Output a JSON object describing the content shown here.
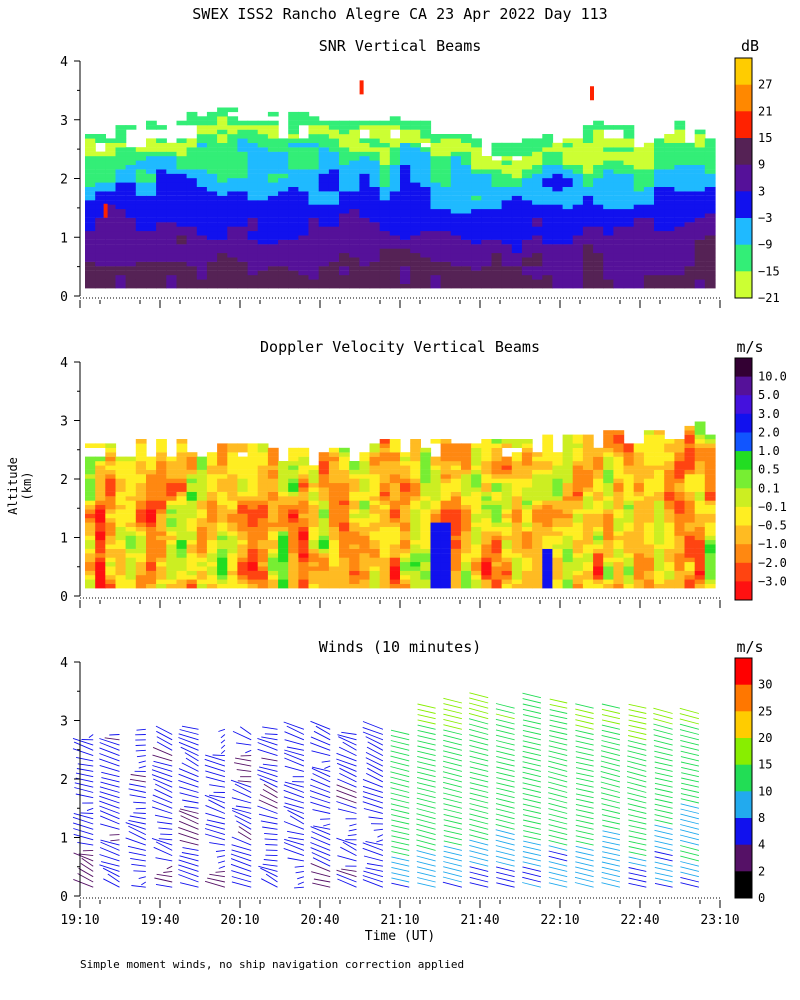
{
  "title": "SWEX ISS2 Rancho Alegre CA  23 Apr 2022 Day 113",
  "y_axis_label": "Altitude (km)",
  "x_axis_label": "Time (UT)",
  "footnote": "Simple moment winds, no ship navigation correction applied",
  "time_ticks": [
    "19:10",
    "19:40",
    "20:10",
    "20:40",
    "21:10",
    "21:40",
    "22:10",
    "22:40",
    "23:10"
  ],
  "chart_data": [
    {
      "type": "heatmap",
      "title": "SNR Vertical Beams",
      "ylim": [
        0,
        4
      ],
      "y_ticks": [
        0,
        1,
        2,
        3,
        4
      ],
      "colorbar": {
        "unit": "dB",
        "labels": [
          "27",
          "21",
          "15",
          "9",
          "3",
          "−3",
          "−9",
          "−15",
          "−21"
        ],
        "colors": [
          "#ffcc00",
          "#ff8800",
          "#ff2200",
          "#552255",
          "#551199",
          "#1111ee",
          "#1fbaff",
          "#33ee77",
          "#ccff33"
        ]
      }
    },
    {
      "type": "heatmap",
      "title": "Doppler Velocity Vertical Beams",
      "ylim": [
        0,
        4
      ],
      "y_ticks": [
        0,
        1,
        2,
        3,
        4
      ],
      "colorbar": {
        "unit": "m/s",
        "labels": [
          "10.0",
          "5.0",
          "3.0",
          "2.0",
          "1.0",
          "0.5",
          "0.1",
          "−0.1",
          "−0.5",
          "−1.0",
          "−2.0",
          "−3.0"
        ],
        "colors": [
          "#330033",
          "#551199",
          "#4411dd",
          "#1111ee",
          "#1155ff",
          "#22dd22",
          "#77ee33",
          "#ccee22",
          "#ffee22",
          "#ffbb22",
          "#ff8811",
          "#ff4411",
          "#ff1111"
        ]
      }
    },
    {
      "type": "wind-barbs",
      "title": "Winds (10 minutes)",
      "ylim": [
        0,
        4
      ],
      "y_ticks": [
        0,
        1,
        2,
        3,
        4
      ],
      "colorbar": {
        "unit": "m/s",
        "labels": [
          "30",
          "25",
          "20",
          "15",
          "10",
          "8",
          "4",
          "2",
          "0"
        ],
        "colors": [
          "#ff0000",
          "#ff7700",
          "#ffcc00",
          "#88ee00",
          "#22dd55",
          "#22aaee",
          "#1111ee",
          "#551166",
          "#000000"
        ]
      }
    }
  ]
}
